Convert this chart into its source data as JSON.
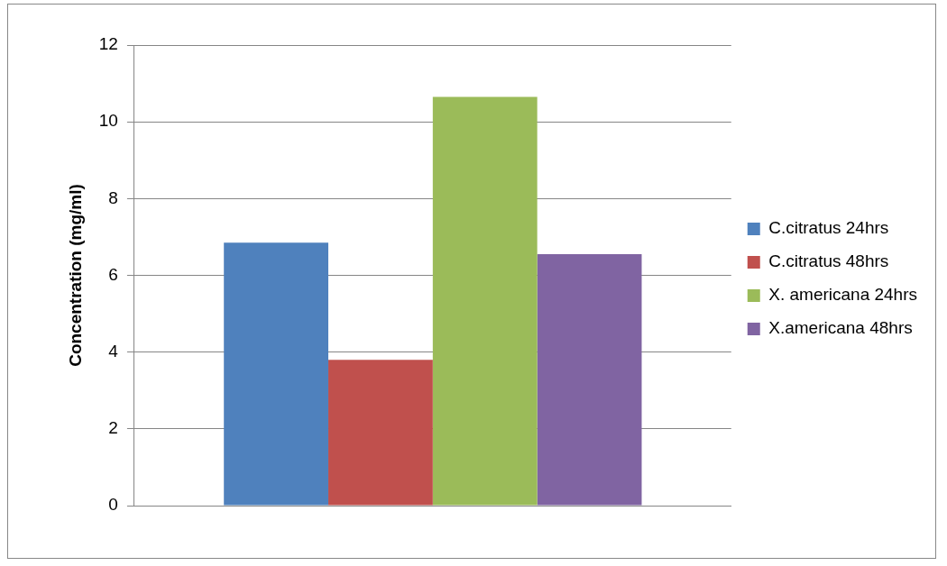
{
  "chart_data": {
    "type": "bar",
    "ylabel": "Concentration (mg/ml)",
    "categories": [
      null
    ],
    "series": [
      {
        "name": "C.citratus 24hrs",
        "color": "#4f81bd",
        "values": [
          6.85
        ]
      },
      {
        "name": "C.citratus 48hrs",
        "color": "#c0504d",
        "values": [
          3.8
        ]
      },
      {
        "name": "X. americana 24hrs",
        "color": "#9bbb59",
        "values": [
          10.65
        ]
      },
      {
        "name": "X.americana 48hrs",
        "color": "#8064a2",
        "values": [
          6.55
        ]
      }
    ],
    "ylim": [
      0,
      12
    ],
    "yticks": [
      0,
      2,
      4,
      6,
      8,
      10,
      12
    ],
    "grid": "y",
    "legend": "right"
  }
}
